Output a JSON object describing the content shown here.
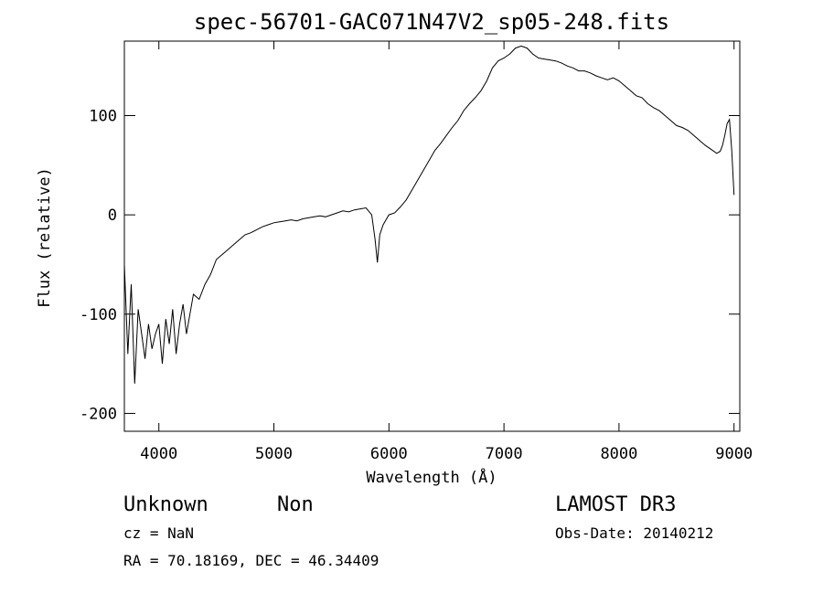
{
  "chart_data": {
    "type": "line",
    "title": "spec-56701-GAC071N47V2_sp05-248.fits",
    "xlabel": "Wavelength (Å)",
    "ylabel": "Flux (relative)",
    "xlim": [
      3700,
      9050
    ],
    "ylim": [
      -218,
      175
    ],
    "xticks": [
      4000,
      5000,
      6000,
      7000,
      8000,
      9000
    ],
    "yticks": [
      -200,
      -100,
      0,
      100
    ],
    "grid": false,
    "series": [
      {
        "x": [
          3700,
          3730,
          3760,
          3790,
          3820,
          3850,
          3880,
          3910,
          3940,
          3970,
          4000,
          4030,
          4060,
          4090,
          4120,
          4150,
          4180,
          4210,
          4240,
          4270,
          4300,
          4350,
          4400,
          4450,
          4500,
          4550,
          4600,
          4650,
          4700,
          4750,
          4800,
          4850,
          4900,
          4950,
          5000,
          5050,
          5100,
          5150,
          5200,
          5250,
          5300,
          5350,
          5400,
          5450,
          5500,
          5550,
          5600,
          5650,
          5700,
          5750,
          5800,
          5850,
          5880,
          5900,
          5920,
          5950,
          6000,
          6050,
          6100,
          6150,
          6200,
          6250,
          6300,
          6350,
          6400,
          6450,
          6500,
          6550,
          6600,
          6650,
          6700,
          6750,
          6800,
          6850,
          6900,
          6950,
          7000,
          7050,
          7100,
          7150,
          7200,
          7250,
          7300,
          7350,
          7400,
          7450,
          7500,
          7550,
          7600,
          7650,
          7700,
          7750,
          7800,
          7850,
          7900,
          7950,
          8000,
          8050,
          8100,
          8150,
          8200,
          8250,
          8300,
          8350,
          8400,
          8450,
          8500,
          8550,
          8600,
          8650,
          8700,
          8750,
          8800,
          8850,
          8880,
          8900,
          8920,
          8940,
          8960,
          8980,
          9000
        ],
        "y": [
          -50,
          -140,
          -70,
          -170,
          -95,
          -120,
          -145,
          -110,
          -135,
          -120,
          -110,
          -150,
          -105,
          -130,
          -95,
          -140,
          -110,
          -90,
          -120,
          -100,
          -80,
          -85,
          -70,
          -60,
          -45,
          -40,
          -35,
          -30,
          -25,
          -20,
          -18,
          -15,
          -12,
          -10,
          -8,
          -7,
          -6,
          -5,
          -6,
          -4,
          -3,
          -2,
          -1,
          -2,
          0,
          2,
          4,
          3,
          5,
          6,
          7,
          0,
          -25,
          -48,
          -20,
          -10,
          0,
          2,
          8,
          15,
          25,
          35,
          45,
          55,
          65,
          72,
          80,
          88,
          95,
          105,
          112,
          118,
          125,
          135,
          148,
          155,
          158,
          162,
          168,
          170,
          168,
          162,
          158,
          157,
          156,
          155,
          153,
          150,
          148,
          145,
          145,
          143,
          140,
          138,
          136,
          138,
          135,
          130,
          125,
          120,
          118,
          112,
          108,
          105,
          100,
          95,
          90,
          88,
          85,
          80,
          75,
          70,
          66,
          62,
          64,
          70,
          80,
          92,
          96,
          65,
          20
        ]
      }
    ]
  },
  "footer": {
    "object_type": "Unknown",
    "object_class": "Non",
    "survey": "LAMOST DR3",
    "cz": "cz = NaN",
    "obs_date": "Obs-Date: 20140212",
    "coords": "RA =  70.18169, DEC =  46.34409"
  }
}
